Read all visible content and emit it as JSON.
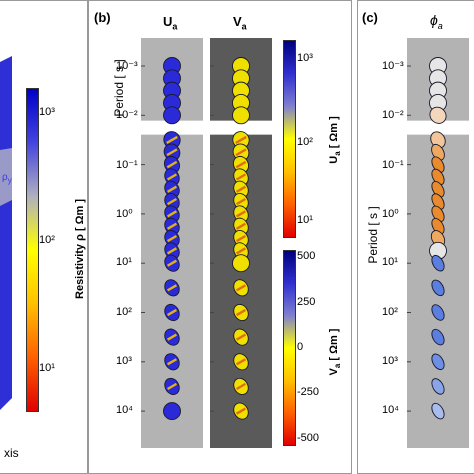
{
  "panel_a": {
    "axis_fragment": "xis",
    "rho_symbol_fragment": "ρ",
    "rho_subscript": "y",
    "colorbar": {
      "label": "Resistivity ρ [ Ωm ]",
      "ticks": [
        "10³",
        "10²",
        "10¹"
      ],
      "colors": [
        "#0000c8",
        "#4444e0",
        "#b0b0c0",
        "#ffff00",
        "#ffc000",
        "#ff6000",
        "#e00000"
      ]
    }
  },
  "panel_b": {
    "letter": "(b)",
    "title_left": "U",
    "title_left_sub": "a",
    "title_right": "V",
    "title_right_sub": "a",
    "ylabel": "Period [ s ]",
    "yticks": [
      "10⁻³",
      "10⁻²",
      "10⁻¹",
      "10⁰",
      "10¹",
      "10²",
      "10³",
      "10⁴"
    ],
    "colorbar_u": {
      "label": "U",
      "label_sub": "a",
      "label_unit": " [ Ωm ]",
      "ticks": [
        "10³",
        "10²",
        "10¹"
      ],
      "colors": [
        "#000080",
        "#3030d0",
        "#8080d0",
        "#ffff00",
        "#ffc000",
        "#ff6000",
        "#e00000"
      ]
    },
    "colorbar_v": {
      "label": "V",
      "label_sub": "a",
      "label_unit": " [ Ωm ]",
      "ticks": [
        "500",
        "250",
        "0",
        "-250",
        "-500"
      ],
      "colors": [
        "#000080",
        "#3030d0",
        "#8080d0",
        "#ffff00",
        "#ffc000",
        "#ff6000",
        "#e00000"
      ]
    }
  },
  "panel_c": {
    "letter": "(c)",
    "title": "ϕ",
    "title_sub": "a",
    "ylabel": "Period [ s ]",
    "yticks": [
      "10⁻³",
      "10⁻²",
      "10⁻¹",
      "10⁰",
      "10¹",
      "10²",
      "10³",
      "10⁴"
    ]
  },
  "chart_data": [
    {
      "type": "scatter",
      "title": "U_a",
      "ylabel": "Period [ s ]",
      "yscale": "log",
      "ylim": [
        0.0005,
        20000
      ],
      "colorbar_label": "U_a [ Ωm ]",
      "colorbar_range": [
        10,
        1000
      ],
      "points": [
        {
          "period": 0.001,
          "tilt": 0,
          "stretch": 1.0,
          "color": "#2a2ad8"
        },
        {
          "period": 0.00178,
          "tilt": 0,
          "stretch": 1.0,
          "color": "#2a2ad8"
        },
        {
          "period": 0.00316,
          "tilt": 0,
          "stretch": 1.0,
          "color": "#2a2ad8"
        },
        {
          "period": 0.00562,
          "tilt": 0,
          "stretch": 1.0,
          "color": "#2a2ad8"
        },
        {
          "period": 0.01,
          "tilt": 0,
          "stretch": 1.0,
          "color": "#2a2ad8"
        },
        {
          "period": 0.0316,
          "tilt": 60,
          "stretch": 0.95,
          "color": "#2a2ad8"
        },
        {
          "period": 0.0562,
          "tilt": 60,
          "stretch": 0.9,
          "color": "#2a2ad8"
        },
        {
          "period": 0.1,
          "tilt": 60,
          "stretch": 0.85,
          "color": "#2a2ad8"
        },
        {
          "period": 0.178,
          "tilt": 60,
          "stretch": 0.8,
          "color": "#2a2ad8"
        },
        {
          "period": 0.316,
          "tilt": 60,
          "stretch": 0.8,
          "color": "#2a2ad8"
        },
        {
          "period": 0.562,
          "tilt": 60,
          "stretch": 0.8,
          "color": "#2a2ad8"
        },
        {
          "period": 1,
          "tilt": 60,
          "stretch": 0.8,
          "color": "#2a2ad8"
        },
        {
          "period": 1.78,
          "tilt": 60,
          "stretch": 0.8,
          "color": "#2a2ad8"
        },
        {
          "period": 3.16,
          "tilt": 60,
          "stretch": 0.8,
          "color": "#2a2ad8"
        },
        {
          "period": 5.62,
          "tilt": 60,
          "stretch": 0.8,
          "color": "#2a2ad8"
        },
        {
          "period": 10,
          "tilt": 60,
          "stretch": 0.8,
          "color": "#2a2ad8"
        },
        {
          "period": 31.6,
          "tilt": 60,
          "stretch": 0.8,
          "color": "#2a2ad8"
        },
        {
          "period": 100,
          "tilt": 60,
          "stretch": 0.8,
          "color": "#2a2ad8"
        },
        {
          "period": 316,
          "tilt": 60,
          "stretch": 0.8,
          "color": "#2a2ad8"
        },
        {
          "period": 1000,
          "tilt": 60,
          "stretch": 0.8,
          "color": "#2a2ad8"
        },
        {
          "period": 3160,
          "tilt": 60,
          "stretch": 0.8,
          "color": "#2a2ad8"
        },
        {
          "period": 10000,
          "tilt": 0,
          "stretch": 1.0,
          "color": "#2a2ad8"
        }
      ]
    },
    {
      "type": "scatter",
      "title": "V_a",
      "ylabel": "Period [ s ]",
      "yscale": "log",
      "ylim": [
        0.0005,
        20000
      ],
      "colorbar_label": "V_a [ Ωm ]",
      "colorbar_range": [
        -500,
        500
      ],
      "points": [
        {
          "period": 0.001,
          "tilt": 0,
          "stretch": 1.0,
          "color": "#f0e000"
        },
        {
          "period": 0.00178,
          "tilt": 0,
          "stretch": 1.0,
          "color": "#f0e000"
        },
        {
          "period": 0.00316,
          "tilt": 0,
          "stretch": 1.0,
          "color": "#f0e000"
        },
        {
          "period": 0.00562,
          "tilt": 0,
          "stretch": 1.0,
          "color": "#f0e000"
        },
        {
          "period": 0.01,
          "tilt": 0,
          "stretch": 1.0,
          "color": "#f0e000"
        },
        {
          "period": 0.0316,
          "tilt": 60,
          "stretch": 0.95,
          "color": "#f0e000"
        },
        {
          "period": 0.0562,
          "tilt": 60,
          "stretch": 0.9,
          "color": "#f0e000"
        },
        {
          "period": 0.1,
          "tilt": 60,
          "stretch": 0.85,
          "color": "#f0e000"
        },
        {
          "period": 0.178,
          "tilt": 60,
          "stretch": 0.8,
          "color": "#f0e000"
        },
        {
          "period": 0.316,
          "tilt": 60,
          "stretch": 0.8,
          "color": "#f0e000"
        },
        {
          "period": 0.562,
          "tilt": 60,
          "stretch": 0.8,
          "color": "#f0e000"
        },
        {
          "period": 1,
          "tilt": 60,
          "stretch": 0.8,
          "color": "#f0e000"
        },
        {
          "period": 1.78,
          "tilt": 60,
          "stretch": 0.8,
          "color": "#f0e000"
        },
        {
          "period": 3.16,
          "tilt": 60,
          "stretch": 0.8,
          "color": "#f0e000"
        },
        {
          "period": 5.62,
          "tilt": 60,
          "stretch": 0.8,
          "color": "#f0e000"
        },
        {
          "period": 10,
          "tilt": 0,
          "stretch": 1.0,
          "color": "#f0e000"
        },
        {
          "period": 31.6,
          "tilt": 60,
          "stretch": 0.8,
          "color": "#f0e000"
        },
        {
          "period": 100,
          "tilt": 60,
          "stretch": 0.8,
          "color": "#f0e000"
        },
        {
          "period": 316,
          "tilt": 60,
          "stretch": 0.8,
          "color": "#f0e000"
        },
        {
          "period": 1000,
          "tilt": 60,
          "stretch": 0.8,
          "color": "#f0e000"
        },
        {
          "period": 3160,
          "tilt": 60,
          "stretch": 0.8,
          "color": "#f0e000"
        },
        {
          "period": 10000,
          "tilt": 60,
          "stretch": 0.8,
          "color": "#f0e000"
        }
      ]
    },
    {
      "type": "scatter",
      "title": "ϕ_a",
      "ylabel": "Period [ s ]",
      "yscale": "log",
      "ylim": [
        0.0005,
        20000
      ],
      "points": [
        {
          "period": 0.001,
          "tilt": 0,
          "stretch": 1.0,
          "color": "#e6e6e6"
        },
        {
          "period": 0.00178,
          "tilt": 0,
          "stretch": 1.0,
          "color": "#e6e6e6"
        },
        {
          "period": 0.00316,
          "tilt": 0,
          "stretch": 1.0,
          "color": "#e6e6e6"
        },
        {
          "period": 0.00562,
          "tilt": 0,
          "stretch": 1.0,
          "color": "#e6e6e6"
        },
        {
          "period": 0.01,
          "tilt": 45,
          "stretch": 0.9,
          "color": "#f3d7bd"
        },
        {
          "period": 0.0316,
          "tilt": 60,
          "stretch": 0.8,
          "color": "#f2c69a"
        },
        {
          "period": 0.0562,
          "tilt": 60,
          "stretch": 0.65,
          "color": "#efa860"
        },
        {
          "period": 0.1,
          "tilt": 60,
          "stretch": 0.6,
          "color": "#e98a2c"
        },
        {
          "period": 0.178,
          "tilt": 60,
          "stretch": 0.6,
          "color": "#e98a2c"
        },
        {
          "period": 0.316,
          "tilt": 60,
          "stretch": 0.6,
          "color": "#e98a2c"
        },
        {
          "period": 0.562,
          "tilt": 60,
          "stretch": 0.6,
          "color": "#e98a2c"
        },
        {
          "period": 1,
          "tilt": 60,
          "stretch": 0.6,
          "color": "#e98a2c"
        },
        {
          "period": 1.78,
          "tilt": 60,
          "stretch": 0.6,
          "color": "#e98a2c"
        },
        {
          "period": 3.16,
          "tilt": 60,
          "stretch": 0.7,
          "color": "#efa860"
        },
        {
          "period": 5.62,
          "tilt": 0,
          "stretch": 1.0,
          "color": "#e6e6e6"
        },
        {
          "period": 10,
          "tilt": 60,
          "stretch": 0.6,
          "color": "#5a7fe0"
        },
        {
          "period": 31.6,
          "tilt": 60,
          "stretch": 0.6,
          "color": "#5a7fe0"
        },
        {
          "period": 100,
          "tilt": 60,
          "stretch": 0.6,
          "color": "#5a7fe0"
        },
        {
          "period": 316,
          "tilt": 60,
          "stretch": 0.6,
          "color": "#5a7fe0"
        },
        {
          "period": 1000,
          "tilt": 60,
          "stretch": 0.6,
          "color": "#6e8fe6"
        },
        {
          "period": 3160,
          "tilt": 60,
          "stretch": 0.6,
          "color": "#8aa4ea"
        },
        {
          "period": 10000,
          "tilt": 60,
          "stretch": 0.6,
          "color": "#a8bcee"
        }
      ]
    }
  ]
}
